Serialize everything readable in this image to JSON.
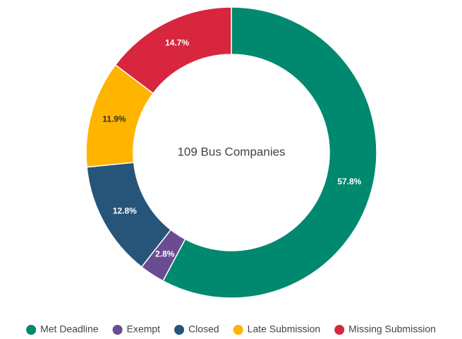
{
  "chart_data": {
    "type": "donut",
    "center_label": "109 Bus Companies",
    "categories": [
      "Met Deadline",
      "Exempt",
      "Closed",
      "Late Submission",
      "Missing Submission"
    ],
    "values": [
      57.8,
      2.8,
      12.8,
      11.9,
      14.7
    ],
    "value_labels": [
      "57.8%",
      "2.8%",
      "12.8%",
      "11.9%",
      "14.7%"
    ],
    "colors": [
      "#00896f",
      "#6a4c93",
      "#27557a",
      "#ffb400",
      "#d7263d"
    ],
    "legend": "bottom"
  }
}
